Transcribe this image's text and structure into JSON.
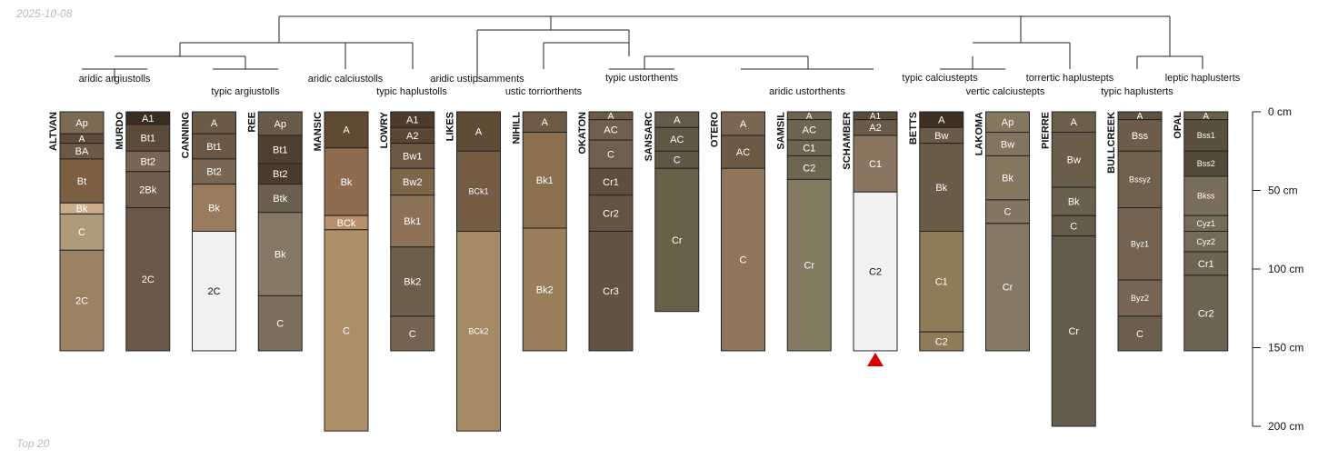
{
  "header": {
    "date": "2025-10-08"
  },
  "footer": {
    "note": "Top 20"
  },
  "colors": {
    "line": "#222222",
    "marker": "#dd0000",
    "light_text": "#ffffff",
    "dark_text": "#111111",
    "muted": "#bbbbbb"
  },
  "chart_data": {
    "type": "table",
    "subtype": "soil profile sketches with dendrogram",
    "depth_axis": {
      "unit": "cm",
      "range": [
        0,
        200
      ],
      "ticks": [
        0,
        50,
        100,
        150,
        200
      ],
      "tick_labels": [
        "0 cm",
        "50 cm",
        "100 cm",
        "150 cm",
        "200 cm"
      ]
    },
    "profiles": [
      {
        "name": "ALTVAN",
        "horizons": [
          {
            "name": "Ap",
            "top": 0,
            "bottom": 14,
            "color": "#7d6a55"
          },
          {
            "name": "A",
            "top": 14,
            "bottom": 20,
            "color": "#5e4b3a"
          },
          {
            "name": "BA",
            "top": 20,
            "bottom": 30,
            "color": "#6e5a44"
          },
          {
            "name": "Bt",
            "top": 30,
            "bottom": 58,
            "color": "#7a5f43"
          },
          {
            "name": "Bk",
            "top": 58,
            "bottom": 65,
            "color": "#c9ad8c"
          },
          {
            "name": "C",
            "top": 65,
            "bottom": 88,
            "color": "#b09a7c"
          },
          {
            "name": "2C",
            "top": 88,
            "bottom": 152,
            "color": "#9c8265"
          }
        ]
      },
      {
        "name": "MURDO",
        "horizons": [
          {
            "name": "A1",
            "top": 0,
            "bottom": 8,
            "color": "#3a2d22"
          },
          {
            "name": "Bt1",
            "top": 8,
            "bottom": 25,
            "color": "#5c4a3a"
          },
          {
            "name": "Bt2",
            "top": 25,
            "bottom": 38,
            "color": "#7a6555"
          },
          {
            "name": "2Bk",
            "top": 38,
            "bottom": 61,
            "color": "#6f5c4d"
          },
          {
            "name": "2C",
            "top": 61,
            "bottom": 152,
            "color": "#6b5849"
          }
        ]
      },
      {
        "name": "CANNING",
        "horizons": [
          {
            "name": "A",
            "top": 0,
            "bottom": 14,
            "color": "#6b5a45"
          },
          {
            "name": "Bt1",
            "top": 14,
            "bottom": 30,
            "color": "#6a5744"
          },
          {
            "name": "Bt2",
            "top": 30,
            "bottom": 46,
            "color": "#7a6753"
          },
          {
            "name": "Bk",
            "top": 46,
            "bottom": 76,
            "color": "#9a7b5e"
          },
          {
            "name": "2C",
            "top": 76,
            "bottom": 152,
            "color": "#f2f2f2"
          }
        ]
      },
      {
        "name": "REE",
        "horizons": [
          {
            "name": "Ap",
            "top": 0,
            "bottom": 15,
            "color": "#6a5a4a"
          },
          {
            "name": "Bt1",
            "top": 15,
            "bottom": 33,
            "color": "#4f3f31"
          },
          {
            "name": "Bt2",
            "top": 33,
            "bottom": 46,
            "color": "#4a3b2d"
          },
          {
            "name": "Btk",
            "top": 46,
            "bottom": 64,
            "color": "#6c5f4f"
          },
          {
            "name": "Bk",
            "top": 64,
            "bottom": 117,
            "color": "#857865"
          },
          {
            "name": "C",
            "top": 117,
            "bottom": 152,
            "color": "#7b6e5d"
          }
        ]
      },
      {
        "name": "MANSIC",
        "horizons": [
          {
            "name": "A",
            "top": 0,
            "bottom": 23,
            "color": "#5f4a33"
          },
          {
            "name": "Bk",
            "top": 23,
            "bottom": 66,
            "color": "#8f6b4f"
          },
          {
            "name": "BCk",
            "top": 66,
            "bottom": 75,
            "color": "#b8906e"
          },
          {
            "name": "C",
            "top": 75,
            "bottom": 203,
            "color": "#ad9068"
          }
        ]
      },
      {
        "name": "LOWRY",
        "horizons": [
          {
            "name": "A1",
            "top": 0,
            "bottom": 10,
            "color": "#4e3b2b"
          },
          {
            "name": "A2",
            "top": 10,
            "bottom": 20,
            "color": "#5a4633"
          },
          {
            "name": "Bw1",
            "top": 20,
            "bottom": 36,
            "color": "#6d5843"
          },
          {
            "name": "Bw2",
            "top": 36,
            "bottom": 53,
            "color": "#7e6649"
          },
          {
            "name": "Bk1",
            "top": 53,
            "bottom": 86,
            "color": "#8c7257"
          },
          {
            "name": "Bk2",
            "top": 86,
            "bottom": 130,
            "color": "#6e5e4c"
          },
          {
            "name": "C",
            "top": 130,
            "bottom": 152,
            "color": "#756452"
          }
        ]
      },
      {
        "name": "LIKES",
        "horizons": [
          {
            "name": "A",
            "top": 0,
            "bottom": 25,
            "color": "#5f4c36"
          },
          {
            "name": "BCk1",
            "top": 25,
            "bottom": 76,
            "color": "#745d42"
          },
          {
            "name": "BCk2",
            "top": 76,
            "bottom": 203,
            "color": "#a58a66"
          }
        ]
      },
      {
        "name": "NIHILL",
        "horizons": [
          {
            "name": "A",
            "top": 0,
            "bottom": 13,
            "color": "#6e5a46"
          },
          {
            "name": "Bk1",
            "top": 13,
            "bottom": 74,
            "color": "#8b704f"
          },
          {
            "name": "Bk2",
            "top": 74,
            "bottom": 152,
            "color": "#9a7e5b"
          }
        ]
      },
      {
        "name": "OKATON",
        "horizons": [
          {
            "name": "A",
            "top": 0,
            "bottom": 5,
            "color": "#6a5a48"
          },
          {
            "name": "AC",
            "top": 5,
            "bottom": 18,
            "color": "#6f604d"
          },
          {
            "name": "C",
            "top": 18,
            "bottom": 36,
            "color": "#6e604f"
          },
          {
            "name": "Cr1",
            "top": 36,
            "bottom": 53,
            "color": "#5d4e3d"
          },
          {
            "name": "Cr2",
            "top": 53,
            "bottom": 76,
            "color": "#645542"
          },
          {
            "name": "Cr3",
            "top": 76,
            "bottom": 152,
            "color": "#615342"
          }
        ]
      },
      {
        "name": "SANSARC",
        "horizons": [
          {
            "name": "A",
            "top": 0,
            "bottom": 10,
            "color": "#665b4a"
          },
          {
            "name": "AC",
            "top": 10,
            "bottom": 25,
            "color": "#625645"
          },
          {
            "name": "C",
            "top": 25,
            "bottom": 36,
            "color": "#625646"
          },
          {
            "name": "Cr",
            "top": 36,
            "bottom": 127,
            "color": "#6a6049"
          }
        ]
      },
      {
        "name": "OTERO",
        "horizons": [
          {
            "name": "A",
            "top": 0,
            "bottom": 15,
            "color": "#7a6652"
          },
          {
            "name": "AC",
            "top": 15,
            "bottom": 36,
            "color": "#6d5a46"
          },
          {
            "name": "C",
            "top": 36,
            "bottom": 152,
            "color": "#8f765b"
          }
        ]
      },
      {
        "name": "SAMSIL",
        "horizons": [
          {
            "name": "A",
            "top": 0,
            "bottom": 5,
            "color": "#6d6450"
          },
          {
            "name": "AC",
            "top": 5,
            "bottom": 18,
            "color": "#6e6550"
          },
          {
            "name": "C1",
            "top": 18,
            "bottom": 28,
            "color": "#6d6451"
          },
          {
            "name": "C2",
            "top": 28,
            "bottom": 43,
            "color": "#6f6652"
          },
          {
            "name": "Cr",
            "top": 43,
            "bottom": 152,
            "color": "#857b63"
          }
        ]
      },
      {
        "name": "SCHAMBER",
        "horizons": [
          {
            "name": "A1",
            "top": 0,
            "bottom": 5,
            "color": "#5a4a3a"
          },
          {
            "name": "A2",
            "top": 5,
            "bottom": 15,
            "color": "#6a5a48"
          },
          {
            "name": "C1",
            "top": 15,
            "bottom": 51,
            "color": "#8a7560"
          },
          {
            "name": "C2",
            "top": 51,
            "bottom": 152,
            "color": "#f2f2f2"
          }
        ]
      },
      {
        "name": "BETTS",
        "horizons": [
          {
            "name": "A",
            "top": 0,
            "bottom": 10,
            "color": "#3e3024"
          },
          {
            "name": "Bw",
            "top": 10,
            "bottom": 20,
            "color": "#6a5a47"
          },
          {
            "name": "Bk",
            "top": 20,
            "bottom": 76,
            "color": "#6a5b49"
          },
          {
            "name": "C1",
            "top": 76,
            "bottom": 140,
            "color": "#8f7b57"
          },
          {
            "name": "C2",
            "top": 140,
            "bottom": 152,
            "color": "#8f7b57"
          }
        ]
      },
      {
        "name": "LAKOMA",
        "horizons": [
          {
            "name": "Ap",
            "top": 0,
            "bottom": 13,
            "color": "#86775f"
          },
          {
            "name": "Bw",
            "top": 13,
            "bottom": 28,
            "color": "#837460"
          },
          {
            "name": "Bk",
            "top": 28,
            "bottom": 56,
            "color": "#857660"
          },
          {
            "name": "C",
            "top": 56,
            "bottom": 71,
            "color": "#837561"
          },
          {
            "name": "Cr",
            "top": 71,
            "bottom": 152,
            "color": "#857864"
          }
        ]
      },
      {
        "name": "PIERRE",
        "horizons": [
          {
            "name": "A",
            "top": 0,
            "bottom": 13,
            "color": "#6b5f4c"
          },
          {
            "name": "Bw",
            "top": 13,
            "bottom": 48,
            "color": "#6a5e4b"
          },
          {
            "name": "Bk",
            "top": 48,
            "bottom": 66,
            "color": "#6b604e"
          },
          {
            "name": "C",
            "top": 66,
            "bottom": 79,
            "color": "#655b4b"
          },
          {
            "name": "Cr",
            "top": 79,
            "bottom": 200,
            "color": "#635d4e"
          }
        ]
      },
      {
        "name": "BULLCREEK",
        "horizons": [
          {
            "name": "A",
            "top": 0,
            "bottom": 5,
            "color": "#5e5140"
          },
          {
            "name": "Bss",
            "top": 5,
            "bottom": 25,
            "color": "#6b5d4a"
          },
          {
            "name": "Bssyz",
            "top": 25,
            "bottom": 61,
            "color": "#6f604c"
          },
          {
            "name": "Byz1",
            "top": 61,
            "bottom": 107,
            "color": "#736350"
          },
          {
            "name": "Byz2",
            "top": 107,
            "bottom": 130,
            "color": "#766653"
          },
          {
            "name": "C",
            "top": 130,
            "bottom": 152,
            "color": "#6c5e4c"
          }
        ]
      },
      {
        "name": "OPAL",
        "horizons": [
          {
            "name": "A",
            "top": 0,
            "bottom": 5,
            "color": "#6b5f4c"
          },
          {
            "name": "Bss1",
            "top": 5,
            "bottom": 25,
            "color": "#5c4f3e"
          },
          {
            "name": "Bss2",
            "top": 25,
            "bottom": 41,
            "color": "#55493a"
          },
          {
            "name": "Bkss",
            "top": 41,
            "bottom": 66,
            "color": "#7a6d5b"
          },
          {
            "name": "Cyz1",
            "top": 66,
            "bottom": 76,
            "color": "#766a58"
          },
          {
            "name": "Cyz2",
            "top": 76,
            "bottom": 89,
            "color": "#766a58"
          },
          {
            "name": "Cr1",
            "top": 89,
            "bottom": 104,
            "color": "#6f6352"
          },
          {
            "name": "Cr2",
            "top": 104,
            "bottom": 152,
            "color": "#6f6453"
          }
        ]
      }
    ],
    "markers": [
      {
        "profile": "SCHAMBER",
        "shape": "triangle-up",
        "color": "#dd0000"
      }
    ],
    "taxonomy_labels": [
      "aridic argiustolls",
      "typic argiustolls",
      "aridic calciustolls",
      "typic haplustolls",
      "aridic ustipsamments",
      "ustic torriorthents",
      "typic ustorthents",
      "aridic ustorthents",
      "typic calciustepts",
      "vertic calciustepts",
      "torrertic haplustepts",
      "typic haplusterts",
      "leptic haplusterts"
    ]
  }
}
